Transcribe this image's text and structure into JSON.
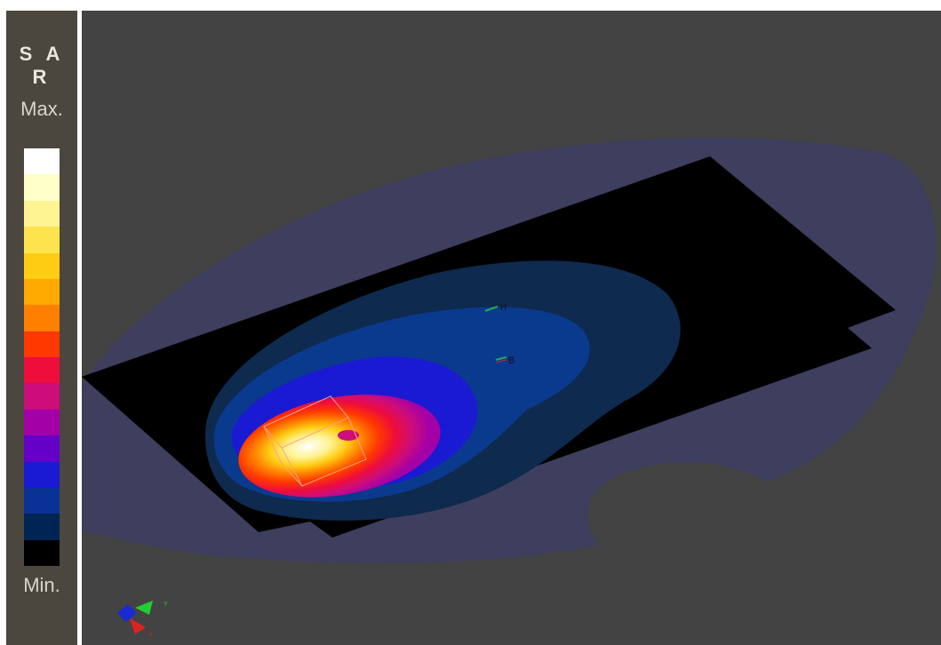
{
  "legend": {
    "title": "S A R",
    "max_label": "Max.",
    "min_label": "Min.",
    "colors": [
      "#ffffff",
      "#ffffc8",
      "#fff392",
      "#fde44e",
      "#ffcc14",
      "#ffaa00",
      "#ff8000",
      "#ff3800",
      "#ee0d3b",
      "#cc0d7a",
      "#a400a8",
      "#6400c8",
      "#1a1ad2",
      "#0a3296",
      "#002454",
      "#000000"
    ]
  },
  "viewport": {
    "labels": {
      "probe_h": "H",
      "probe_b": "B"
    },
    "axes": {
      "y_label": "Y",
      "x_label": "x"
    },
    "colors": {
      "background": "#434343",
      "ground_plane": "#3e3e5e",
      "board": "#000000",
      "field_outer": "#0e2a4e",
      "field_mid": "#0a3a8e",
      "probe_box": "#ffa080"
    }
  }
}
